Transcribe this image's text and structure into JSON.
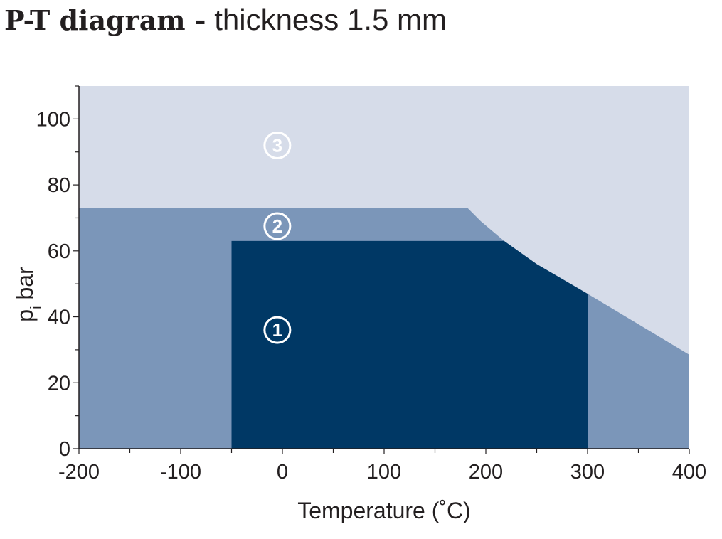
{
  "title": {
    "bold": "P-T diagram -",
    "normal": "thickness 1.5 mm"
  },
  "chart_data": {
    "type": "area",
    "xlabel": "Temperature (˚C)",
    "ylabel": "p",
    "ylabel_subscript": "i",
    "ylabel_unit": "bar",
    "xlim": [
      -200,
      400
    ],
    "ylim": [
      0,
      110
    ],
    "x_ticks": [
      -200,
      -100,
      0,
      100,
      200,
      300,
      400
    ],
    "y_ticks": [
      0,
      20,
      40,
      60,
      80,
      100
    ],
    "x_minor_step": 50,
    "y_minor_step": 10,
    "grid": false,
    "colors": {
      "zone1": "#003865",
      "zone2": "#7b96b9",
      "zone3": "#d6dce9",
      "axis": "#231f20"
    },
    "regions": [
      {
        "name": "zone3",
        "marker": "3",
        "label_at": [
          -5,
          92
        ],
        "polygon": [
          [
            -200,
            0
          ],
          [
            400,
            0
          ],
          [
            400,
            110
          ],
          [
            -200,
            110
          ]
        ]
      },
      {
        "name": "zone2",
        "marker": "2",
        "label_at": [
          -5,
          67.5
        ],
        "polygon": [
          [
            -200,
            0
          ],
          [
            400,
            0
          ],
          [
            400,
            28.5
          ],
          [
            300,
            47
          ],
          [
            250,
            56
          ],
          [
            218,
            63
          ],
          [
            195,
            69
          ],
          [
            182,
            73
          ],
          [
            -200,
            73
          ]
        ]
      },
      {
        "name": "zone1",
        "marker": "1",
        "label_at": [
          -5,
          36
        ],
        "polygon": [
          [
            -50,
            0
          ],
          [
            300,
            0
          ],
          [
            300,
            47
          ],
          [
            250,
            56
          ],
          [
            218,
            63
          ],
          [
            -50,
            63
          ]
        ]
      }
    ]
  }
}
